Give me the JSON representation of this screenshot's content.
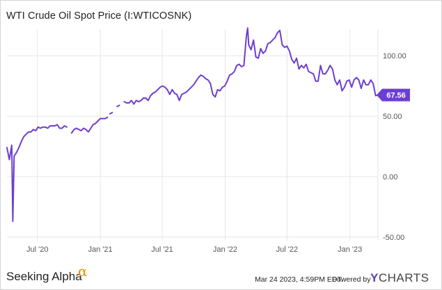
{
  "title": "WTI Crude Oil Spot Price (I:WTICOSNK)",
  "footer": {
    "brand": "Seeking Alpha",
    "brand_mark": "α",
    "timestamp": "Mar 24 2023, 4:59PM EDT.",
    "powered_by": "Powered by",
    "ycharts_y": "Y",
    "ycharts_rest": "CHARTS"
  },
  "colors": {
    "line": "#6c3fd1",
    "grid": "#e6e6e6",
    "badge": "#6c3fd1"
  },
  "chart_data": {
    "type": "line",
    "title": "WTI Crude Oil Spot Price (I:WTICOSNK)",
    "xlabel": "",
    "ylabel": "",
    "ylim": [
      -53,
      122
    ],
    "xlim": [
      "2020-04-03",
      "2023-03-24"
    ],
    "y_ticks": [
      {
        "value": 100,
        "label": "100.00"
      },
      {
        "value": 50,
        "label": "50.00"
      },
      {
        "value": 0,
        "label": "0.00"
      },
      {
        "value": -50,
        "label": "-50.00"
      }
    ],
    "x_ticks": [
      {
        "date": "2020-07-01",
        "label": "Jul '20"
      },
      {
        "date": "2021-01-01",
        "label": "Jan '21"
      },
      {
        "date": "2021-07-01",
        "label": "Jul '21"
      },
      {
        "date": "2022-01-01",
        "label": "Jan '22"
      },
      {
        "date": "2022-07-01",
        "label": "Jul '22"
      },
      {
        "date": "2023-01-01",
        "label": "Jan '23"
      }
    ],
    "grid": true,
    "last_value_label": "67.56",
    "series": [
      {
        "segments": [
          [
            [
              "2020-04-03",
              24
            ],
            [
              "2020-04-10",
              14
            ],
            [
              "2020-04-17",
              26
            ],
            [
              "2020-04-20",
              -37
            ],
            [
              "2020-04-24",
              17
            ],
            [
              "2020-05-01",
              20
            ],
            [
              "2020-05-08",
              24
            ],
            [
              "2020-05-15",
              29
            ],
            [
              "2020-05-22",
              33
            ],
            [
              "2020-05-29",
              35
            ],
            [
              "2020-06-05",
              37
            ],
            [
              "2020-06-12",
              37
            ],
            [
              "2020-06-19",
              39
            ],
            [
              "2020-06-26",
              38
            ],
            [
              "2020-07-03",
              41
            ],
            [
              "2020-07-10",
              40
            ],
            [
              "2020-07-17",
              41
            ],
            [
              "2020-07-24",
              41
            ],
            [
              "2020-07-31",
              40
            ],
            [
              "2020-08-07",
              42
            ],
            [
              "2020-08-14",
              42
            ],
            [
              "2020-08-21",
              42
            ],
            [
              "2020-08-28",
              43
            ],
            [
              "2020-09-04",
              40
            ],
            [
              "2020-09-11",
              40
            ],
            [
              "2020-09-18",
              42
            ],
            [
              "2020-09-25",
              41
            ]
          ],
          [
            [
              "2020-10-09",
              36
            ],
            [
              "2020-10-16",
              39
            ],
            [
              "2020-10-23",
              40
            ],
            [
              "2020-10-30",
              39
            ],
            [
              "2020-11-06",
              38
            ],
            [
              "2020-11-13",
              40
            ],
            [
              "2020-11-20",
              39
            ],
            [
              "2020-11-27",
              37
            ],
            [
              "2020-12-04",
              40
            ],
            [
              "2020-12-11",
              43
            ],
            [
              "2020-12-18",
              44
            ],
            [
              "2020-12-25",
              46
            ],
            [
              "2021-01-01",
              48
            ],
            [
              "2021-01-08",
              48
            ],
            [
              "2021-01-15",
              48
            ],
            [
              "2021-01-22",
              49
            ]
          ],
          [
            [
              "2021-01-29",
              52
            ],
            [
              "2021-02-05",
              53
            ]
          ],
          [
            [
              "2021-02-19",
              58
            ],
            [
              "2021-02-26",
              59
            ]
          ],
          [
            [
              "2021-03-12",
              62
            ],
            [
              "2021-03-19",
              61
            ],
            [
              "2021-03-26",
              61
            ],
            [
              "2021-04-02",
              63
            ],
            [
              "2021-04-09",
              60
            ],
            [
              "2021-04-16",
              63
            ],
            [
              "2021-04-23",
              62
            ],
            [
              "2021-04-30",
              63
            ],
            [
              "2021-05-07",
              65
            ],
            [
              "2021-05-14",
              65
            ],
            [
              "2021-05-21",
              63
            ],
            [
              "2021-05-28",
              67
            ],
            [
              "2021-06-04",
              69
            ],
            [
              "2021-06-11",
              70
            ],
            [
              "2021-06-18",
              72
            ],
            [
              "2021-06-25",
              74
            ],
            [
              "2021-07-02",
              75
            ],
            [
              "2021-07-09",
              74
            ],
            [
              "2021-07-16",
              72
            ],
            [
              "2021-07-23",
              68
            ],
            [
              "2021-07-30",
              72
            ],
            [
              "2021-08-06",
              69
            ],
            [
              "2021-08-13",
              68
            ],
            [
              "2021-08-20",
              63
            ],
            [
              "2021-08-27",
              68
            ],
            [
              "2021-09-03",
              69
            ],
            [
              "2021-09-10",
              70
            ],
            [
              "2021-09-17",
              72
            ],
            [
              "2021-09-24",
              74
            ],
            [
              "2021-10-01",
              76
            ],
            [
              "2021-10-08",
              79
            ],
            [
              "2021-10-15",
              82
            ],
            [
              "2021-10-22",
              84
            ],
            [
              "2021-10-29",
              83
            ],
            [
              "2021-11-05",
              81
            ],
            [
              "2021-11-12",
              80
            ],
            [
              "2021-11-19",
              77
            ],
            [
              "2021-11-26",
              68
            ],
            [
              "2021-12-03",
              66
            ],
            [
              "2021-12-10",
              72
            ],
            [
              "2021-12-17",
              71
            ],
            [
              "2021-12-24",
              74
            ],
            [
              "2021-12-31",
              75
            ],
            [
              "2022-01-07",
              79
            ],
            [
              "2022-01-14",
              84
            ],
            [
              "2022-01-21",
              85
            ],
            [
              "2022-01-28",
              87
            ],
            [
              "2022-02-04",
              92
            ],
            [
              "2022-02-11",
              93
            ],
            [
              "2022-02-18",
              91
            ],
            [
              "2022-02-25",
              92
            ],
            [
              "2022-03-04",
              116
            ],
            [
              "2022-03-08",
              123
            ],
            [
              "2022-03-11",
              109
            ],
            [
              "2022-03-18",
              105
            ],
            [
              "2022-03-25",
              113
            ],
            [
              "2022-04-01",
              99
            ],
            [
              "2022-04-08",
              98
            ],
            [
              "2022-04-15",
              106
            ],
            [
              "2022-04-22",
              102
            ],
            [
              "2022-04-29",
              104
            ],
            [
              "2022-05-06",
              110
            ],
            [
              "2022-05-13",
              111
            ],
            [
              "2022-05-20",
              113
            ],
            [
              "2022-05-27",
              115
            ],
            [
              "2022-06-03",
              119
            ],
            [
              "2022-06-10",
              121
            ],
            [
              "2022-06-17",
              109
            ],
            [
              "2022-06-24",
              107
            ],
            [
              "2022-07-01",
              108
            ],
            [
              "2022-07-08",
              104
            ],
            [
              "2022-07-15",
              97
            ],
            [
              "2022-07-22",
              94
            ],
            [
              "2022-07-29",
              98
            ],
            [
              "2022-08-05",
              89
            ],
            [
              "2022-08-12",
              92
            ],
            [
              "2022-08-19",
              90
            ],
            [
              "2022-08-26",
              93
            ],
            [
              "2022-09-02",
              87
            ],
            [
              "2022-09-09",
              86
            ],
            [
              "2022-09-16",
              85
            ],
            [
              "2022-09-23",
              79
            ],
            [
              "2022-09-30",
              79
            ],
            [
              "2022-10-07",
              92
            ],
            [
              "2022-10-14",
              85
            ],
            [
              "2022-10-21",
              85
            ],
            [
              "2022-10-28",
              88
            ],
            [
              "2022-11-04",
              92
            ],
            [
              "2022-11-11",
              89
            ],
            [
              "2022-11-18",
              80
            ],
            [
              "2022-11-25",
              76
            ],
            [
              "2022-12-02",
              80
            ],
            [
              "2022-12-09",
              71
            ],
            [
              "2022-12-16",
              74
            ],
            [
              "2022-12-23",
              79
            ],
            [
              "2022-12-30",
              80
            ],
            [
              "2023-01-06",
              74
            ],
            [
              "2023-01-13",
              80
            ],
            [
              "2023-01-20",
              82
            ],
            [
              "2023-01-27",
              80
            ],
            [
              "2023-02-03",
              73
            ],
            [
              "2023-02-10",
              80
            ],
            [
              "2023-02-17",
              76
            ],
            [
              "2023-02-24",
              76
            ],
            [
              "2023-03-03",
              80
            ],
            [
              "2023-03-10",
              77
            ],
            [
              "2023-03-17",
              67
            ],
            [
              "2023-03-24",
              67.56
            ]
          ]
        ]
      }
    ]
  }
}
